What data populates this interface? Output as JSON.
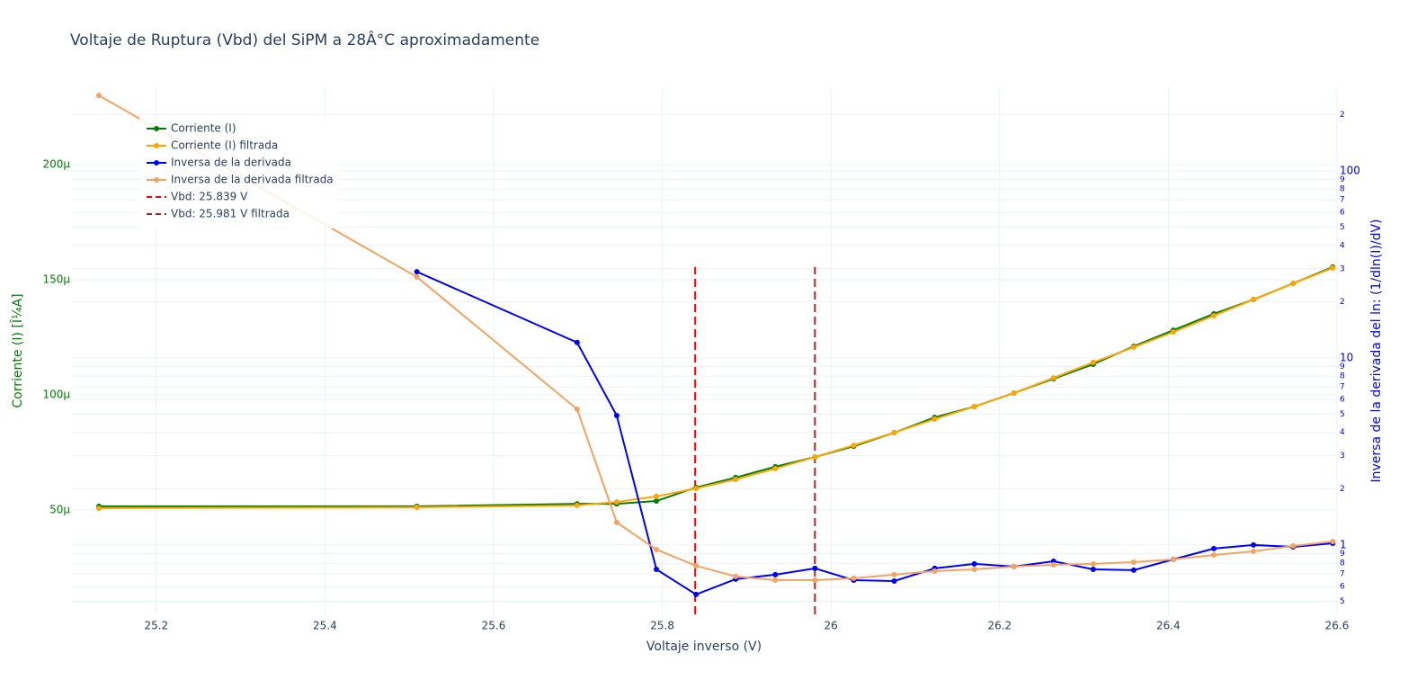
{
  "chart_data": {
    "type": "line",
    "title": "Voltaje de Ruptura (Vbd) del SiPM a 28Â°C aproximadamente",
    "x_label": "Voltaje inverso (V)",
    "y_label": "Corriente (I) [Î¼A]",
    "y2_label": "Inversa de la derivada del ln: (1/dln(I)/dV)",
    "x": [
      25.132,
      25.509,
      25.699,
      25.746,
      25.793,
      25.84,
      25.887,
      25.934,
      25.981,
      26.027,
      26.075,
      26.123,
      26.17,
      26.217,
      26.264,
      26.311,
      26.359,
      26.406,
      26.454,
      26.501,
      26.548,
      26.595
    ],
    "series": [
      {
        "name": "Corriente (I)",
        "color": "#008000",
        "axis": "y",
        "values": [
          5.16e-05,
          5.16e-05,
          5.27e-05,
          5.27e-05,
          5.39e-05,
          5.98e-05,
          6.41e-05,
          6.88e-05,
          7.3e-05,
          7.77e-05,
          8.36e-05,
          9.02e-05,
          9.49e-05,
          0.0001008,
          0.000107,
          0.0001133,
          0.0001211,
          0.0001281,
          0.0001352,
          0.0001414,
          0.0001484,
          0.0001555
        ]
      },
      {
        "name": "Corriente (I) filtrada",
        "color": "#FFA500",
        "axis": "y",
        "values": [
          5.08e-05,
          5.12e-05,
          5.2e-05,
          5.35e-05,
          5.59e-05,
          5.94e-05,
          6.33e-05,
          6.8e-05,
          7.3e-05,
          7.81e-05,
          8.36e-05,
          8.95e-05,
          9.49e-05,
          0.0001008,
          0.0001074,
          0.0001141,
          0.0001207,
          0.0001273,
          0.0001344,
          0.0001414,
          0.0001484,
          0.0001551
        ]
      },
      {
        "name": "Inversa de la derivada",
        "color": "#0000FF",
        "axis": "y2",
        "values": [
          null,
          28.9,
          12.1,
          4.92,
          0.741,
          0.544,
          0.657,
          0.694,
          0.75,
          0.649,
          0.642,
          0.75,
          0.793,
          0.767,
          0.819,
          0.741,
          0.734,
          0.838,
          0.957,
          1.0,
          0.978,
          1.022
        ]
      },
      {
        "name": "Inversa de la derivada filtrada",
        "color": "#F4A460",
        "axis": "y2",
        "values": [
          253,
          27.1,
          5.32,
          1.32,
          0.946,
          0.775,
          0.679,
          0.649,
          0.649,
          0.664,
          0.694,
          0.726,
          0.741,
          0.767,
          0.784,
          0.793,
          0.81,
          0.838,
          0.885,
          0.925,
          0.989,
          1.045
        ]
      }
    ],
    "vlines": [
      {
        "name": "Vbd: 25.839 V",
        "x": 25.839,
        "color": "#FF0000",
        "y": [
          4.7e-06,
          0.0001555
        ]
      },
      {
        "name": "Vbd: 25.981 V filtrada",
        "x": 25.981,
        "color": "#B22222",
        "y": [
          4.7e-06,
          0.0001555
        ]
      }
    ],
    "xlim": [
      25.1,
      26.6
    ],
    "xticks": [
      25.2,
      25.4,
      25.6,
      25.8,
      26,
      26.2,
      26.4,
      26.6
    ],
    "ylim": [
      4.7e-06,
      0.0002332
    ],
    "yticks": [
      {
        "value": 5e-05,
        "label": "50μ"
      },
      {
        "value": 0.0001,
        "label": "100μ"
      },
      {
        "value": 0.00015,
        "label": "150μ"
      },
      {
        "value": 0.0002,
        "label": "200μ"
      }
    ],
    "y2lim": [
      0.426,
      277
    ],
    "y2log": true,
    "y2ticks": [
      {
        "value": 0.5,
        "label": "5"
      },
      {
        "value": 0.6,
        "label": "6"
      },
      {
        "value": 0.7,
        "label": "7"
      },
      {
        "value": 0.8,
        "label": "8"
      },
      {
        "value": 0.9,
        "label": "9"
      },
      1,
      {
        "value": 2,
        "label": "2"
      },
      {
        "value": 3,
        "label": "3"
      },
      {
        "value": 4,
        "label": "4"
      },
      {
        "value": 5,
        "label": "5"
      },
      {
        "value": 6,
        "label": "6"
      },
      {
        "value": 7,
        "label": "7"
      },
      {
        "value": 8,
        "label": "8"
      },
      {
        "value": 9,
        "label": "9"
      },
      10,
      {
        "value": 20,
        "label": "2"
      },
      {
        "value": 30,
        "label": "3"
      },
      {
        "value": 40,
        "label": "4"
      },
      {
        "value": 50,
        "label": "5"
      },
      {
        "value": 60,
        "label": "6"
      },
      {
        "value": 70,
        "label": "7"
      },
      {
        "value": 80,
        "label": "8"
      },
      {
        "value": 90,
        "label": "9"
      },
      100,
      {
        "value": 200,
        "label": "2"
      }
    ],
    "grid": true,
    "legend": "top-left"
  }
}
